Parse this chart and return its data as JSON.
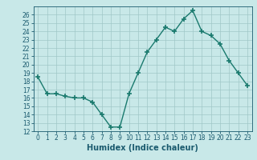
{
  "x": [
    0,
    1,
    2,
    3,
    4,
    5,
    6,
    7,
    8,
    9,
    10,
    11,
    12,
    13,
    14,
    15,
    16,
    17,
    18,
    19,
    20,
    21,
    22,
    23
  ],
  "y": [
    18.5,
    16.5,
    16.5,
    16.2,
    16.0,
    16.0,
    15.5,
    14.0,
    12.5,
    12.5,
    16.5,
    19.0,
    21.5,
    23.0,
    24.5,
    24.0,
    25.5,
    26.5,
    24.0,
    23.5,
    22.5,
    20.5,
    19.0,
    17.5
  ],
  "line_color": "#1a7a6e",
  "marker": "+",
  "marker_size": 4,
  "marker_lw": 1.2,
  "bg_color": "#c8e8e8",
  "grid_major_color": "#a0c8c8",
  "grid_minor_color": "#b8d8d8",
  "xlabel": "Humidex (Indice chaleur)",
  "ylim": [
    12,
    27
  ],
  "xlim": [
    -0.5,
    23.5
  ],
  "yticks": [
    12,
    13,
    14,
    15,
    16,
    17,
    18,
    19,
    20,
    21,
    22,
    23,
    24,
    25,
    26
  ],
  "xticks": [
    0,
    1,
    2,
    3,
    4,
    5,
    6,
    7,
    8,
    9,
    10,
    11,
    12,
    13,
    14,
    15,
    16,
    17,
    18,
    19,
    20,
    21,
    22,
    23
  ],
  "font_color": "#1a5a6e",
  "tick_fontsize": 5.5,
  "label_fontsize": 7,
  "line_width": 1.0
}
